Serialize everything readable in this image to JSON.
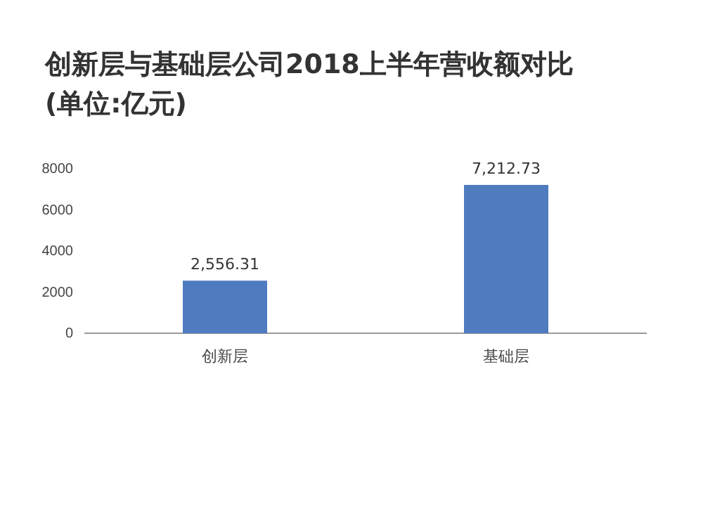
{
  "chart_data": {
    "type": "bar",
    "title": "创新层与基础层公司2018上半年营收额对比",
    "subtitle": "(单位:亿元)",
    "categories": [
      "创新层",
      "基础层"
    ],
    "values": [
      2556.31,
      7212.73
    ],
    "value_labels": [
      "2,556.31",
      "7,212.73"
    ],
    "color": "#4f7bbf",
    "ylim": [
      0,
      8000
    ],
    "yticks": [
      0,
      2000,
      4000,
      6000,
      8000
    ],
    "grid": false
  }
}
